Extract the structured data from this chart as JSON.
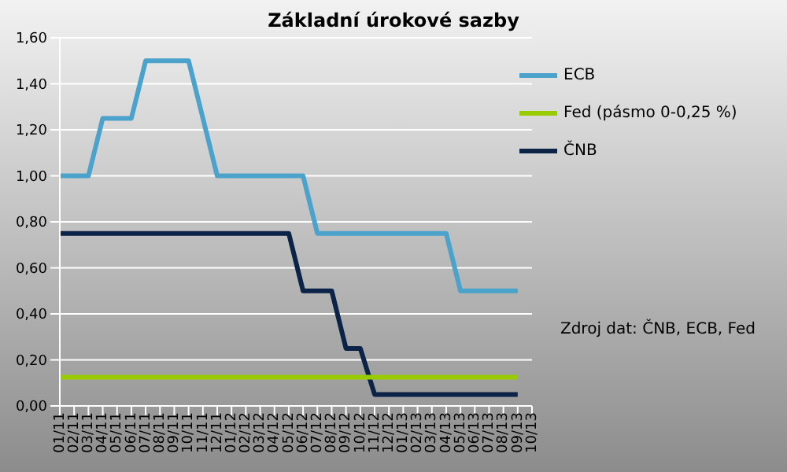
{
  "chart_data": {
    "type": "line",
    "title": "Základní úrokové sazby",
    "categories": [
      "01/11",
      "02/11",
      "03/11",
      "04/11",
      "05/11",
      "06/11",
      "07/11",
      "08/11",
      "09/11",
      "10/11",
      "11/11",
      "12/11",
      "01/12",
      "02/12",
      "03/12",
      "04/12",
      "05/12",
      "06/12",
      "07/12",
      "08/12",
      "09/12",
      "10/12",
      "11/12",
      "12/12",
      "01/13",
      "02/13",
      "03/13",
      "04/13",
      "05/13",
      "06/13",
      "07/13",
      "08/13",
      "09/13",
      "10/13"
    ],
    "series": [
      {
        "name": "ČNB",
        "color": "#0b2347",
        "values": [
          0.75,
          0.75,
          0.75,
          0.75,
          0.75,
          0.75,
          0.75,
          0.75,
          0.75,
          0.75,
          0.75,
          0.75,
          0.75,
          0.75,
          0.75,
          0.75,
          0.75,
          0.5,
          0.5,
          0.5,
          0.25,
          0.25,
          0.05,
          0.05,
          0.05,
          0.05,
          0.05,
          0.05,
          0.05,
          0.05,
          0.05,
          0.05,
          0.05,
          null
        ]
      },
      {
        "name": "ECB",
        "color": "#4ba3cc",
        "values": [
          1,
          1,
          1,
          1.25,
          1.25,
          1.25,
          1.5,
          1.5,
          1.5,
          1.5,
          1.25,
          1,
          1,
          1,
          1,
          1,
          1,
          1,
          0.75,
          0.75,
          0.75,
          0.75,
          0.75,
          0.75,
          0.75,
          0.75,
          0.75,
          0.75,
          0.5,
          0.5,
          0.5,
          0.5,
          0.5,
          null
        ]
      },
      {
        "name": "Fed (pásmo 0-0,25 %)",
        "color": "#99cc00",
        "values": [
          0.125,
          0.125,
          0.125,
          0.125,
          0.125,
          0.125,
          0.125,
          0.125,
          0.125,
          0.125,
          0.125,
          0.125,
          0.125,
          0.125,
          0.125,
          0.125,
          0.125,
          0.125,
          0.125,
          0.125,
          0.125,
          0.125,
          0.125,
          0.125,
          0.125,
          0.125,
          0.125,
          0.125,
          0.125,
          0.125,
          0.125,
          0.125,
          0.125,
          null
        ]
      }
    ],
    "ylim": [
      0,
      1.6
    ],
    "yticks": [
      {
        "value": 0,
        "label": "0,00"
      },
      {
        "value": 0.2,
        "label": "0,20"
      },
      {
        "value": 0.4,
        "label": "0,40"
      },
      {
        "value": 0.6,
        "label": "0,60"
      },
      {
        "value": 0.8,
        "label": "0,80"
      },
      {
        "value": 1,
        "label": "1,00"
      },
      {
        "value": 1.2,
        "label": "1,20"
      },
      {
        "value": 1.4,
        "label": "1,40"
      },
      {
        "value": 1.6,
        "label": "1,60"
      }
    ],
    "grid": "y",
    "legend": "top right",
    "marker": "none",
    "line_style": "solid",
    "annotations": [
      "Zdroj dat: ČNB, ECB, Fed"
    ]
  }
}
